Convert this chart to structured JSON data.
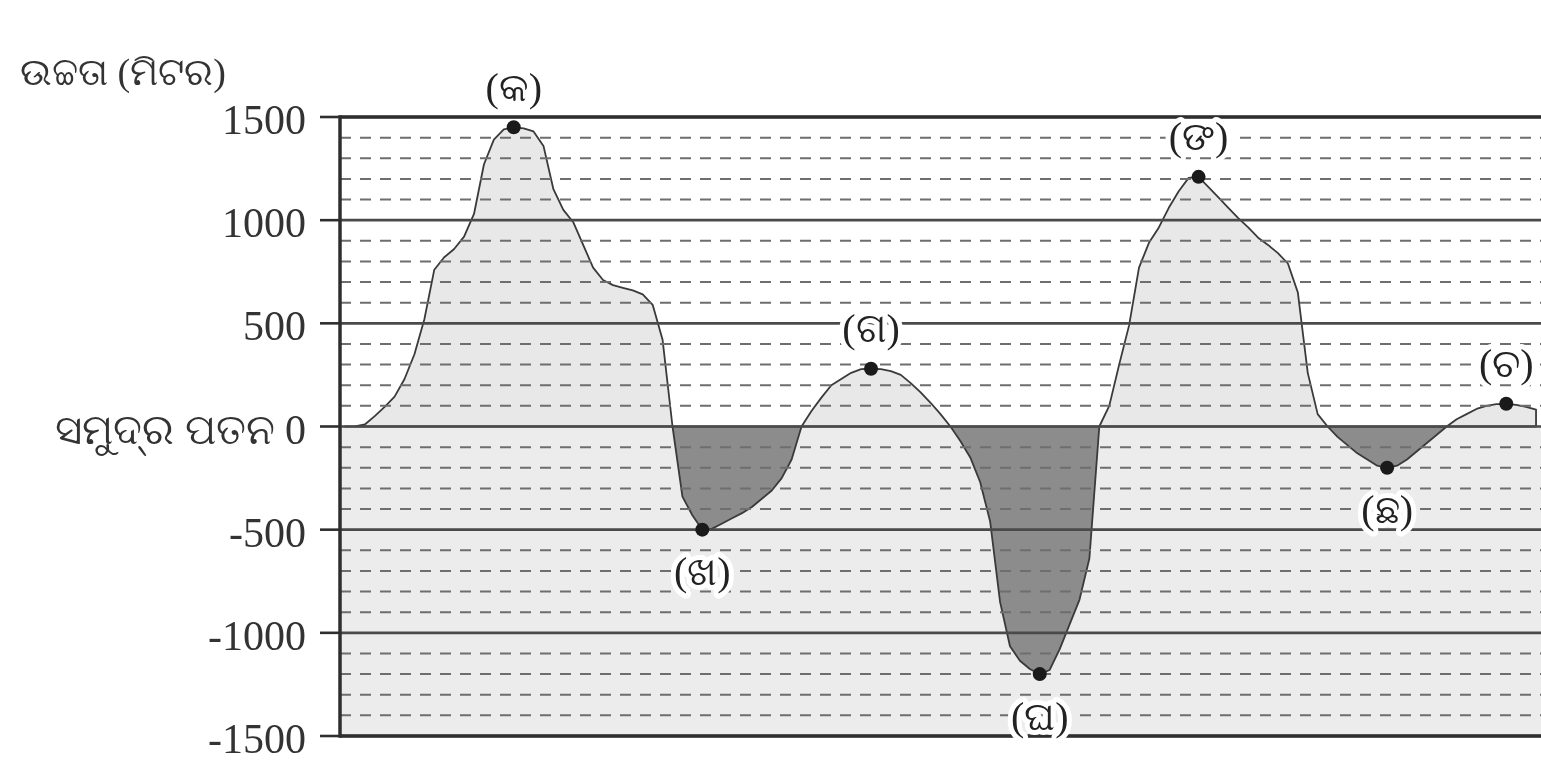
{
  "chart_data": {
    "type": "area",
    "ylabel": "ଉଚ୍ଚତା (ମିଟର)",
    "categories": [
      null,
      null,
      null,
      null,
      null,
      null,
      null,
      null,
      null,
      null,
      null,
      null,
      null,
      null,
      null,
      null,
      null,
      null,
      null,
      null,
      null,
      null,
      null,
      null,
      null,
      null,
      null,
      null,
      null,
      null,
      null,
      null,
      null,
      null,
      null,
      null,
      null,
      null,
      null,
      null,
      null,
      null,
      null,
      null,
      null,
      null,
      null,
      null,
      null,
      null,
      null,
      null,
      null,
      null,
      null,
      null,
      null,
      null,
      null,
      null,
      null,
      null,
      null,
      null,
      null,
      null,
      null,
      null,
      null,
      null,
      null,
      null,
      null,
      null,
      null,
      null,
      null,
      null,
      null,
      null,
      null,
      null,
      null,
      null,
      null,
      null,
      null,
      null,
      null,
      null,
      null,
      null,
      null,
      null,
      null,
      null,
      null,
      null,
      null,
      null,
      null,
      null,
      null,
      null,
      null,
      null,
      null,
      null,
      null,
      null,
      null,
      null,
      null,
      null,
      null,
      null,
      null,
      null,
      null,
      null,
      null
    ],
    "series": [
      {
        "type": "area",
        "color": "#e8e8e8",
        "values": [
          0,
          0,
          10,
          50,
          95,
          145,
          230,
          350,
          520,
          760,
          820,
          860,
          920,
          1030,
          1270,
          1390,
          1440,
          1450,
          1445,
          1430,
          1360,
          1150,
          1050,
          990,
          880,
          770,
          710,
          685,
          672,
          660,
          640,
          590,
          420,
          0,
          null,
          null,
          null,
          null,
          null,
          null,
          null,
          null,
          null,
          null,
          null,
          null,
          0,
          75,
          140,
          200,
          230,
          260,
          278,
          280,
          278,
          268,
          250,
          210,
          165,
          115,
          60,
          0,
          null,
          null,
          null,
          null,
          null,
          null,
          null,
          null,
          null,
          null,
          null,
          null,
          null,
          null,
          0,
          100,
          300,
          490,
          770,
          890,
          965,
          1060,
          1140,
          1205,
          1210,
          1160,
          1110,
          1060,
          1010,
          965,
          915,
          880,
          840,
          790,
          650,
          260,
          60,
          0,
          null,
          null,
          null,
          null,
          null,
          null,
          null,
          null,
          null,
          null,
          null,
          0,
          35,
          60,
          85,
          100,
          108,
          110,
          105,
          95,
          82
        ]
      },
      {
        "type": "area",
        "color": "#8c8c8c",
        "values": [
          null,
          null,
          null,
          null,
          null,
          null,
          null,
          null,
          null,
          null,
          null,
          null,
          null,
          null,
          null,
          null,
          null,
          null,
          null,
          null,
          null,
          null,
          null,
          null,
          null,
          null,
          null,
          null,
          null,
          null,
          null,
          null,
          null,
          0,
          -340,
          -430,
          -500,
          -495,
          -470,
          -445,
          -420,
          -390,
          -350,
          -310,
          -250,
          -160,
          0,
          null,
          null,
          null,
          null,
          null,
          null,
          null,
          null,
          null,
          null,
          null,
          null,
          null,
          null,
          0,
          -70,
          -150,
          -270,
          -460,
          -850,
          -1065,
          -1135,
          -1175,
          -1200,
          -1180,
          -1080,
          -960,
          -840,
          -640,
          0,
          null,
          null,
          null,
          null,
          null,
          null,
          null,
          null,
          null,
          null,
          null,
          null,
          null,
          null,
          null,
          null,
          null,
          null,
          null,
          null,
          null,
          null,
          0,
          -50,
          -90,
          -130,
          -160,
          -190,
          -200,
          -190,
          -160,
          -120,
          -80,
          -40,
          0,
          null,
          null,
          null,
          null,
          null,
          null,
          null,
          null,
          null
        ]
      },
      {
        "type": "scatter",
        "color": "#1a1a1a",
        "marker": "circle",
        "values": [
          null,
          null,
          null,
          null,
          null,
          null,
          null,
          null,
          null,
          null,
          null,
          null,
          null,
          null,
          null,
          null,
          null,
          1450,
          null,
          null,
          null,
          null,
          null,
          null,
          null,
          null,
          null,
          null,
          null,
          null,
          null,
          null,
          null,
          null,
          null,
          null,
          -500,
          null,
          null,
          null,
          null,
          null,
          null,
          null,
          null,
          null,
          null,
          null,
          null,
          null,
          null,
          null,
          null,
          280,
          null,
          null,
          null,
          null,
          null,
          null,
          null,
          null,
          null,
          null,
          null,
          null,
          null,
          null,
          null,
          null,
          -1200,
          null,
          null,
          null,
          null,
          null,
          null,
          null,
          null,
          null,
          null,
          null,
          null,
          null,
          null,
          null,
          1210,
          null,
          null,
          null,
          null,
          null,
          null,
          null,
          null,
          null,
          null,
          null,
          null,
          null,
          null,
          null,
          null,
          null,
          null,
          -200,
          null,
          null,
          null,
          null,
          null,
          null,
          null,
          null,
          null,
          null,
          null,
          110,
          null,
          null,
          null
        ]
      }
    ],
    "ylim": [
      -1500,
      1500
    ],
    "yticks": [
      -1500,
      {
        "value": -1400,
        "label": null
      },
      {
        "value": -1300,
        "label": null
      },
      {
        "value": -1200,
        "label": null
      },
      {
        "value": -1100,
        "label": null
      },
      -1000,
      {
        "value": -900,
        "label": null
      },
      {
        "value": -800,
        "label": null
      },
      {
        "value": -700,
        "label": null
      },
      {
        "value": -600,
        "label": null
      },
      -500,
      {
        "value": -400,
        "label": null
      },
      {
        "value": -300,
        "label": null
      },
      {
        "value": -200,
        "label": null
      },
      {
        "value": -100,
        "label": null
      },
      {
        "value": 0,
        "label": "ସମୁଦ୍ର ପତନ 0"
      },
      {
        "value": 100,
        "label": null
      },
      {
        "value": 200,
        "label": null
      },
      {
        "value": 300,
        "label": null
      },
      {
        "value": 400,
        "label": null
      },
      500,
      {
        "value": 600,
        "label": null
      },
      {
        "value": 700,
        "label": null
      },
      {
        "value": 800,
        "label": null
      },
      {
        "value": 900,
        "label": null
      },
      1000,
      {
        "value": 1100,
        "label": null
      },
      {
        "value": 1200,
        "label": null
      },
      {
        "value": 1300,
        "label": null
      },
      {
        "value": 1400,
        "label": null
      },
      1500
    ],
    "grid": "y",
    "tick_labels": "y",
    "bands": [
      {
        "axis": "y",
        "from": -1500,
        "to": 0,
        "color": "#ececec"
      }
    ],
    "annotations": [
      {
        "text": "(କ)",
        "y": 1450
      },
      {
        "text": "(ଖ)",
        "y": -500
      },
      {
        "text": "(ଗ)",
        "y": 280
      },
      {
        "text": "(ଘ)",
        "y": -1200
      },
      {
        "text": "(ଙ)",
        "y": 1210
      },
      {
        "text": "(ଛ)",
        "y": -200
      },
      {
        "text": "(ଚ)",
        "y": 110
      }
    ]
  }
}
